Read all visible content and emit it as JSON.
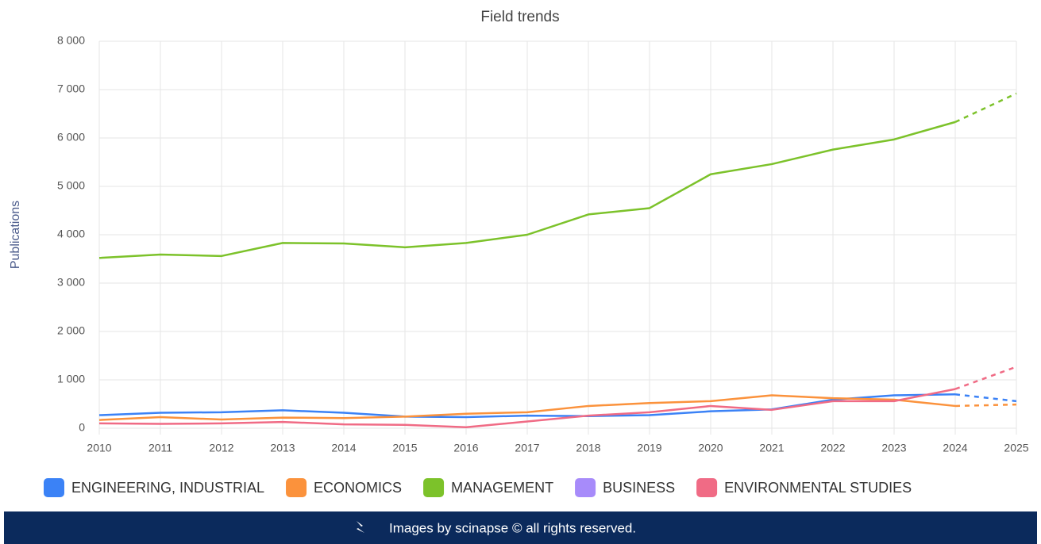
{
  "chart_data": {
    "type": "line",
    "title": "Field trends",
    "ylabel": "Publications",
    "x": [
      2010,
      2011,
      2012,
      2013,
      2014,
      2015,
      2016,
      2017,
      2018,
      2019,
      2020,
      2021,
      2022,
      2023,
      2024,
      2025
    ],
    "xlim": [
      2010,
      2025
    ],
    "xticks": [
      2010,
      2011,
      2012,
      2013,
      2014,
      2015,
      2016,
      2017,
      2018,
      2019,
      2020,
      2021,
      2022,
      2023,
      2024,
      2025
    ],
    "ylim": [
      0,
      8000
    ],
    "yticks": [
      0,
      {
        "value": 1000,
        "label": "1 000"
      },
      {
        "value": 2000,
        "label": "2 000"
      },
      {
        "value": 3000,
        "label": "3 000"
      },
      {
        "value": 4000,
        "label": "4 000"
      },
      {
        "value": 5000,
        "label": "5 000"
      },
      {
        "value": 6000,
        "label": "6 000"
      },
      {
        "value": 7000,
        "label": "7 000"
      },
      {
        "value": 8000,
        "label": "8 000"
      }
    ],
    "grid": true,
    "legend": "bottom",
    "forecast_start": 2024,
    "series": [
      {
        "name": "ENGINEERING, INDUSTRIAL",
        "color": "#3b82f6",
        "values": [
          270,
          320,
          330,
          370,
          320,
          240,
          230,
          260,
          250,
          270,
          350,
          390,
          590,
          680,
          700,
          560
        ]
      },
      {
        "name": "ECONOMICS",
        "color": "#fb923c",
        "values": [
          170,
          230,
          180,
          220,
          210,
          240,
          300,
          330,
          460,
          520,
          560,
          680,
          620,
          590,
          460,
          490
        ]
      },
      {
        "name": "MANAGEMENT",
        "color": "#7cc22a",
        "values": [
          3520,
          3590,
          3560,
          3830,
          3820,
          3740,
          3830,
          4000,
          4420,
          4550,
          5250,
          5460,
          5760,
          5970,
          6330,
          6920
        ]
      },
      {
        "name": "BUSINESS",
        "color": "#a78bfa",
        "values": [
          null,
          null,
          null,
          null,
          null,
          null,
          null,
          null,
          null,
          null,
          null,
          null,
          null,
          null,
          null,
          null
        ]
      },
      {
        "name": "ENVIRONMENTAL STUDIES",
        "color": "#f06b85",
        "values": [
          100,
          90,
          100,
          130,
          80,
          70,
          20,
          140,
          260,
          330,
          460,
          380,
          560,
          560,
          810,
          1270
        ]
      }
    ]
  },
  "footer": "Images by scinapse © all rights reserved."
}
